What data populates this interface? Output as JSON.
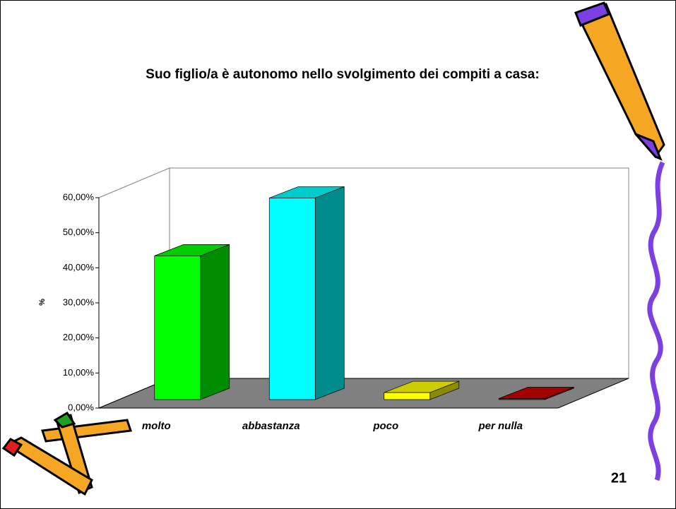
{
  "chart_data": {
    "type": "bar3d",
    "title": "Suo figlio/a è autonomo nello svolgimento dei compiti a casa:",
    "y_label": "%",
    "categories": [
      "molto",
      "abbastanza",
      "poco",
      "per nulla"
    ],
    "values": [
      41,
      57.5,
      2,
      0.3
    ],
    "colors": [
      "#00ff00",
      "#00ffff",
      "#ffff00",
      "#cc0000"
    ],
    "ylim": [
      0,
      60
    ],
    "yticks": [
      {
        "value": 0,
        "label": "0,00%"
      },
      {
        "value": 10,
        "label": "10,00%"
      },
      {
        "value": 20,
        "label": "20,00%"
      },
      {
        "value": 30,
        "label": "30,00%"
      },
      {
        "value": 40,
        "label": "40,00%"
      },
      {
        "value": 50,
        "label": "50,00%"
      },
      {
        "value": 60,
        "label": "60,00%"
      }
    ],
    "page_number": "21"
  }
}
